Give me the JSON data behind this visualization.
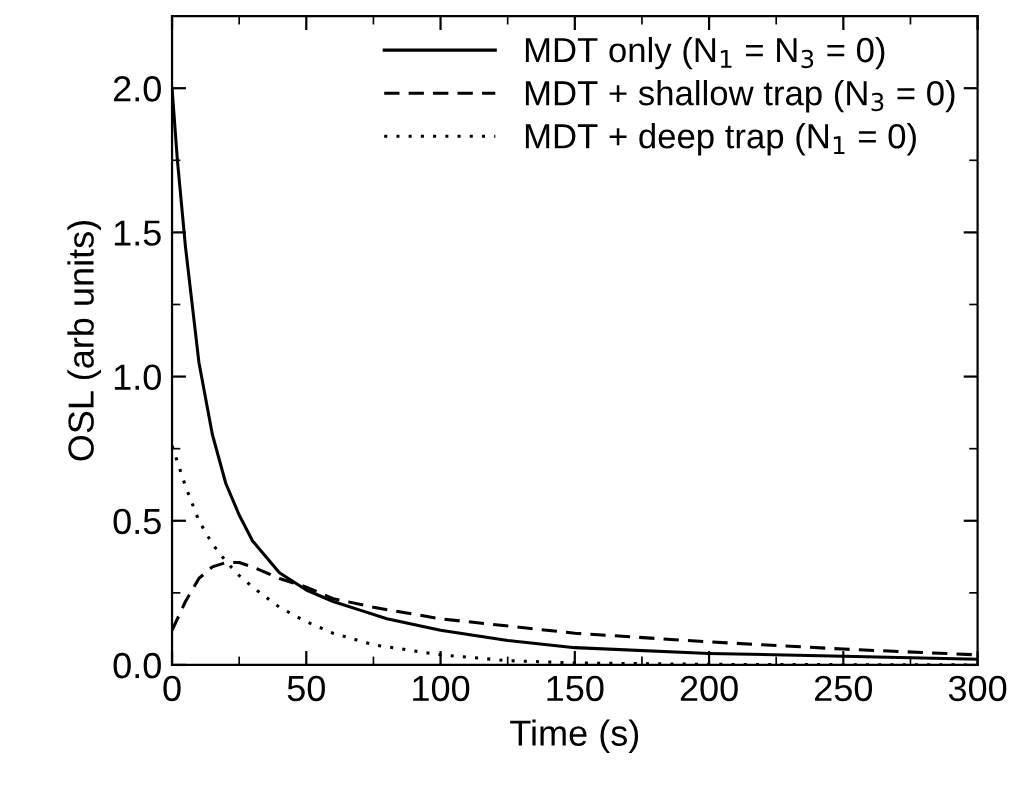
{
  "chart_data": {
    "type": "line",
    "xlabel": "Time (s)",
    "ylabel": "OSL (arb units)",
    "xlim": [
      0,
      300
    ],
    "ylim": [
      0,
      2.25
    ],
    "xticks": [
      0,
      50,
      100,
      150,
      200,
      250,
      300
    ],
    "yticks": [
      {
        "value": 0,
        "label": "0.0"
      },
      {
        "value": 0.5,
        "label": "0.5"
      },
      {
        "value": 1.0,
        "label": "1.0"
      },
      {
        "value": 1.5,
        "label": "1.5"
      },
      {
        "value": 2.0,
        "label": "2.0"
      }
    ],
    "grid": false,
    "legend": "top right",
    "marker": "none",
    "series": [
      {
        "name": "MDT only (N$_{1}$ = N$_{3}$ = 0)",
        "color": "#000000",
        "line_style": "solid",
        "x": [
          0,
          2,
          5,
          10,
          15,
          20,
          25,
          30,
          40,
          50,
          60,
          70,
          80,
          100,
          125,
          150,
          200,
          250,
          300
        ],
        "values": [
          2.0,
          1.75,
          1.45,
          1.05,
          0.8,
          0.63,
          0.52,
          0.43,
          0.32,
          0.26,
          0.22,
          0.19,
          0.16,
          0.12,
          0.085,
          0.06,
          0.04,
          0.03,
          0.02
        ]
      },
      {
        "name": "MDT + shallow trap (N$_{3}$ = 0)",
        "color": "#000000",
        "line_style": "dashed",
        "x": [
          0,
          5,
          10,
          15,
          20,
          25,
          30,
          40,
          50,
          60,
          75,
          100,
          150,
          200,
          250,
          300
        ],
        "values": [
          0.12,
          0.22,
          0.3,
          0.34,
          0.355,
          0.355,
          0.34,
          0.3,
          0.27,
          0.23,
          0.2,
          0.16,
          0.11,
          0.08,
          0.055,
          0.035
        ]
      },
      {
        "name": "MDT + deep trap (N$_{1}$ = 0)",
        "color": "#000000",
        "line_style": "dotted",
        "x": [
          0,
          5,
          10,
          15,
          20,
          25,
          30,
          40,
          50,
          60,
          75,
          100,
          125,
          150,
          200,
          300
        ],
        "values": [
          0.76,
          0.62,
          0.5,
          0.42,
          0.36,
          0.31,
          0.27,
          0.2,
          0.15,
          0.11,
          0.07,
          0.035,
          0.015,
          0.007,
          0.002,
          0
        ]
      }
    ]
  }
}
